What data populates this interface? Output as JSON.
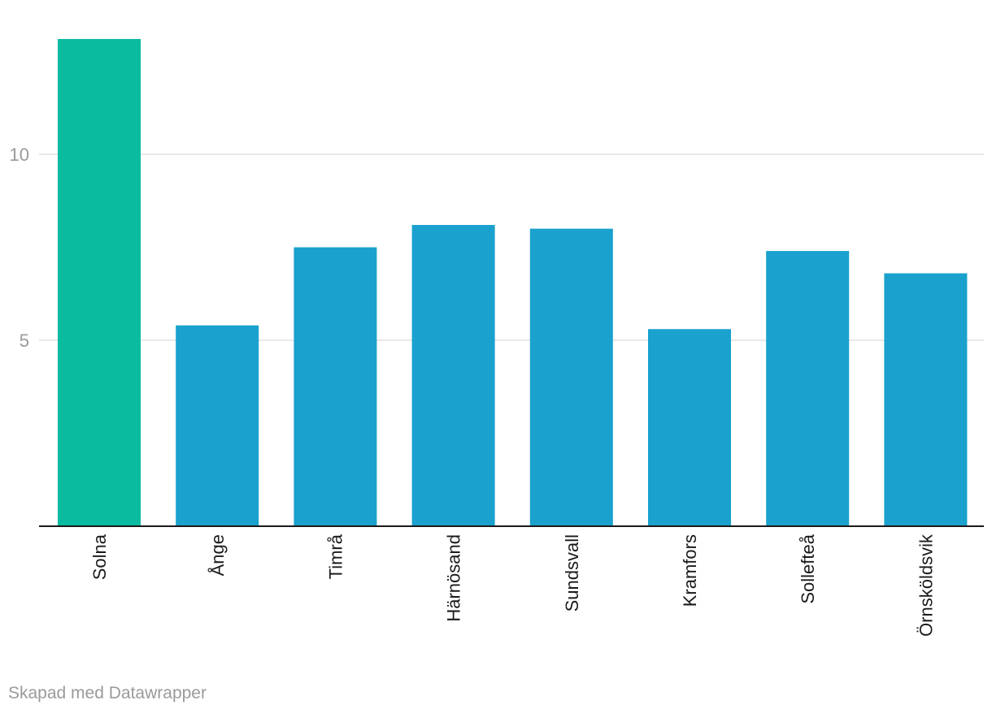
{
  "chart_data": {
    "type": "bar",
    "categories": [
      "Solna",
      "Ånge",
      "Timrå",
      "Härnösand",
      "Sundsvall",
      "Kramfors",
      "Sollefteå",
      "Örnsköldsvik"
    ],
    "values": [
      13.1,
      5.4,
      7.5,
      8.1,
      8.0,
      5.3,
      7.4,
      6.8
    ],
    "yticks": [
      5,
      10
    ],
    "ylim": [
      0,
      13.1
    ],
    "grid": true,
    "colors": {
      "highlight": "#0bbba0",
      "default": "#1aa1cd",
      "grid": "#e0e0e0",
      "baseline": "#1a1a1a"
    },
    "highlight_index": 0
  },
  "footer": {
    "credit": "Skapad med Datawrapper"
  }
}
